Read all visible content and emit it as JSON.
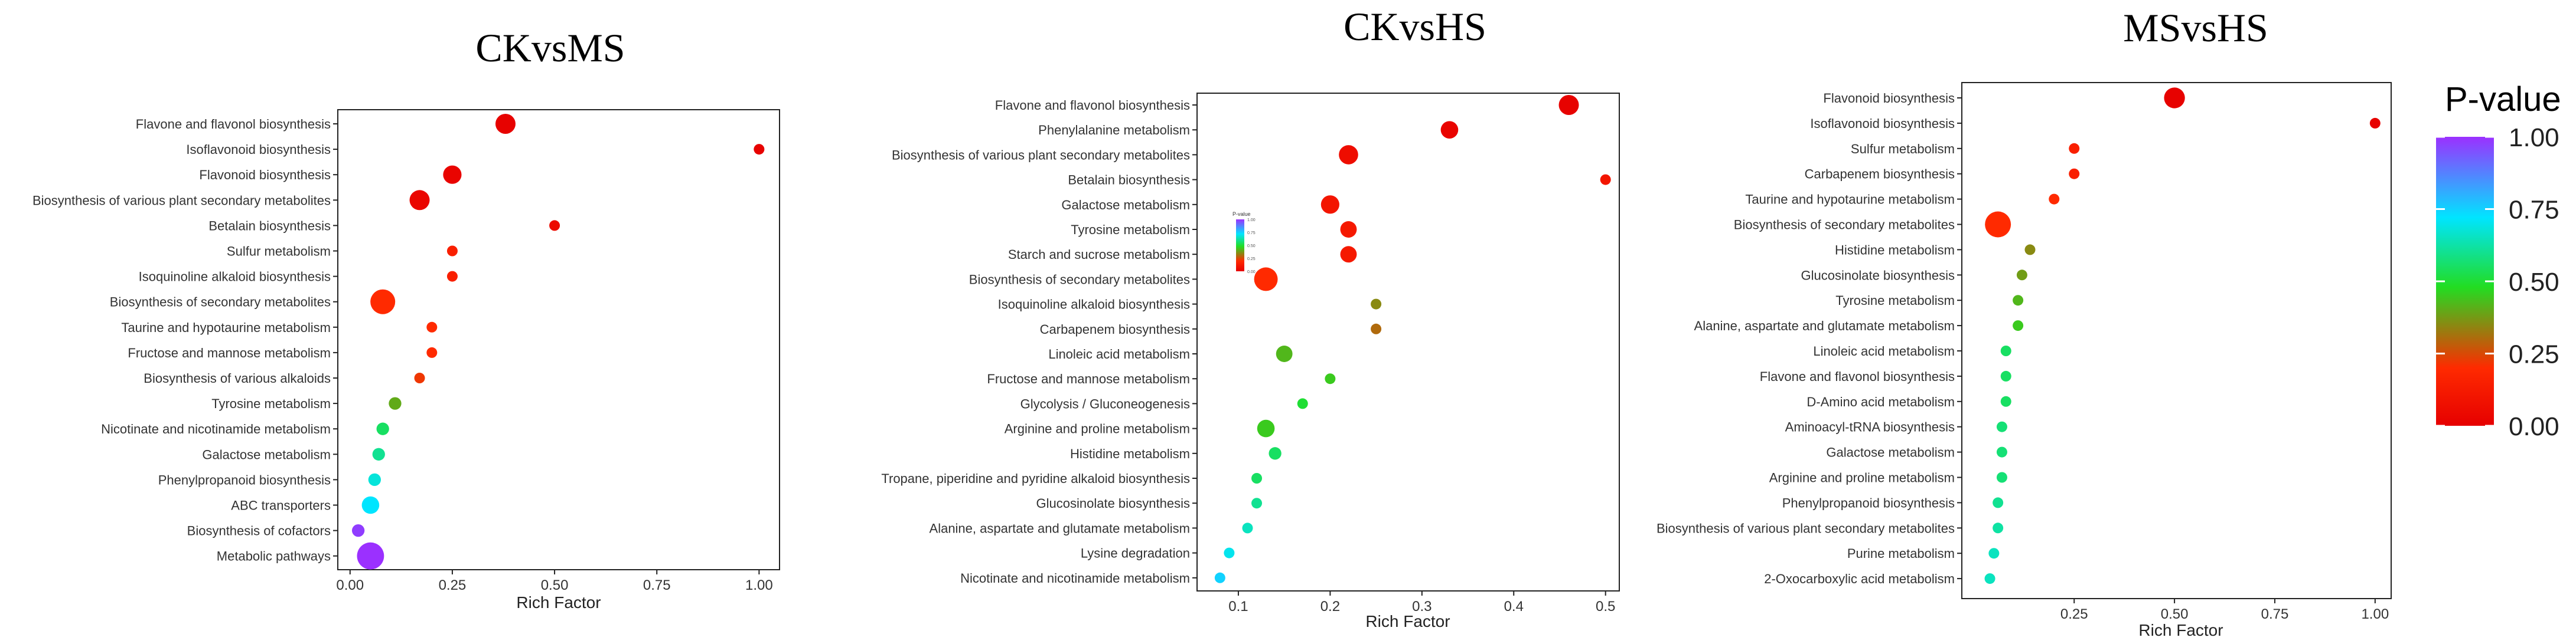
{
  "legend": {
    "title": "P-value",
    "ticks": [
      "1.00",
      "0.75",
      "0.50",
      "0.25",
      "0.00"
    ],
    "tick_values": [
      1.0,
      0.75,
      0.5,
      0.25,
      0.0
    ],
    "colors": [
      "#9b30ff",
      "#00e5ff",
      "#22dd22",
      "#ff2a00",
      "#e60000"
    ],
    "mini_title": "P-value",
    "mini_ticks": [
      "1.00",
      "0.75",
      "0.50",
      "0.25",
      "0.00"
    ]
  },
  "chart_data": [
    {
      "type": "scatter",
      "title": "CKvsMS",
      "xlabel": "Rich Factor",
      "xlim": [
        -0.03,
        1.05
      ],
      "xticks": [
        0.0,
        0.25,
        0.5,
        0.75,
        1.0
      ],
      "xtick_labels": [
        "0.00",
        "0.25",
        "0.50",
        "0.75",
        "1.00"
      ],
      "categories": [
        "Flavone and flavonol biosynthesis",
        "Isoflavonoid biosynthesis",
        "Flavonoid biosynthesis",
        "Biosynthesis of various plant secondary metabolites",
        "Betalain biosynthesis",
        "Sulfur metabolism",
        "Isoquinoline alkaloid biosynthesis",
        "Biosynthesis of secondary metabolites",
        "Taurine and hypotaurine metabolism",
        "Fructose and mannose metabolism",
        "Biosynthesis of various alkaloids",
        "Tyrosine metabolism",
        "Nicotinate and nicotinamide metabolism",
        "Galactose metabolism",
        "Phenylpropanoid biosynthesis",
        "ABC transporters",
        "Biosynthesis of cofactors",
        "Metabolic pathways"
      ],
      "rich_factor": [
        0.38,
        1.0,
        0.25,
        0.17,
        0.5,
        0.25,
        0.25,
        0.08,
        0.2,
        0.2,
        0.17,
        0.11,
        0.08,
        0.07,
        0.06,
        0.05,
        0.02,
        0.05
      ],
      "p_value": [
        0.01,
        0.01,
        0.02,
        0.03,
        0.05,
        0.15,
        0.15,
        0.2,
        0.2,
        0.2,
        0.22,
        0.4,
        0.55,
        0.6,
        0.68,
        0.72,
        0.98,
        1.0
      ],
      "count": [
        9,
        1,
        7,
        9,
        1,
        1,
        1,
        16,
        1,
        1,
        1,
        2,
        2,
        2,
        2,
        6,
        2,
        20
      ]
    },
    {
      "type": "scatter",
      "title": "CKvsHS",
      "xlabel": "Rich Factor",
      "xlim": [
        0.055,
        0.515
      ],
      "xticks": [
        0.1,
        0.2,
        0.3,
        0.4,
        0.5
      ],
      "xtick_labels": [
        "0.1",
        "0.2",
        "0.3",
        "0.4",
        "0.5"
      ],
      "categories": [
        "Flavone and flavonol biosynthesis",
        "Phenylalanine metabolism",
        "Biosynthesis of various plant secondary metabolites",
        "Betalain biosynthesis",
        "Galactose metabolism",
        "Tyrosine metabolism",
        "Starch and sucrose metabolism",
        "Biosynthesis of secondary metabolites",
        "Isoquinoline alkaloid biosynthesis",
        "Carbapenem biosynthesis",
        "Linoleic acid metabolism",
        "Fructose and mannose metabolism",
        "Glycolysis / Gluconeogenesis",
        "Arginine and proline metabolism",
        "Histidine metabolism",
        "Tropane, piperidine and pyridine alkaloid biosynthesis",
        "Glucosinolate biosynthesis",
        "Alanine, aspartate and glutamate metabolism",
        "Lysine degradation",
        "Nicotinate and nicotinamide metabolism"
      ],
      "rich_factor": [
        0.46,
        0.33,
        0.22,
        0.5,
        0.2,
        0.22,
        0.22,
        0.13,
        0.25,
        0.25,
        0.15,
        0.2,
        0.17,
        0.13,
        0.14,
        0.12,
        0.12,
        0.11,
        0.09,
        0.08
      ],
      "p_value": [
        0.01,
        0.02,
        0.06,
        0.1,
        0.1,
        0.12,
        0.12,
        0.2,
        0.35,
        0.3,
        0.42,
        0.45,
        0.5,
        0.45,
        0.55,
        0.55,
        0.6,
        0.65,
        0.7,
        0.75
      ],
      "count": [
        9,
        6,
        8,
        1,
        7,
        5,
        5,
        14,
        1,
        1,
        5,
        1,
        1,
        6,
        2,
        1,
        1,
        1,
        1,
        1
      ]
    },
    {
      "type": "scatter",
      "title": "MSvsHS",
      "xlabel": "Rich Factor",
      "xlim": [
        -0.03,
        1.04
      ],
      "xticks": [
        0.25,
        0.5,
        0.75,
        1.0
      ],
      "xtick_labels": [
        "0.25",
        "0.50",
        "0.75",
        "1.00"
      ],
      "categories": [
        "Flavonoid biosynthesis",
        "Isoflavonoid biosynthesis",
        "Sulfur metabolism",
        "Carbapenem biosynthesis",
        "Taurine and hypotaurine metabolism",
        "Biosynthesis of secondary metabolites",
        "Histidine metabolism",
        "Glucosinolate biosynthesis",
        "Tyrosine metabolism",
        "Alanine, aspartate and glutamate metabolism",
        "Linoleic acid metabolism",
        "Flavone and flavonol biosynthesis",
        "D-Amino acid metabolism",
        "Aminoacyl-tRNA biosynthesis",
        "Galactose metabolism",
        "Arginine and proline metabolism",
        "Phenylpropanoid biosynthesis",
        "Biosynthesis of various plant secondary metabolites",
        "Purine metabolism",
        "2-Oxocarboxylic acid metabolism"
      ],
      "rich_factor": [
        0.5,
        1.0,
        0.25,
        0.25,
        0.2,
        0.06,
        0.14,
        0.12,
        0.11,
        0.11,
        0.08,
        0.08,
        0.08,
        0.07,
        0.07,
        0.07,
        0.06,
        0.06,
        0.05,
        0.04
      ],
      "p_value": [
        0.01,
        0.01,
        0.15,
        0.15,
        0.2,
        0.2,
        0.35,
        0.38,
        0.42,
        0.45,
        0.55,
        0.55,
        0.55,
        0.57,
        0.57,
        0.57,
        0.6,
        0.62,
        0.65,
        0.65
      ],
      "count": [
        10,
        1,
        1,
        1,
        1,
        18,
        1,
        1,
        1,
        1,
        1,
        1,
        1,
        1,
        1,
        1,
        1,
        1,
        1,
        1
      ]
    }
  ]
}
